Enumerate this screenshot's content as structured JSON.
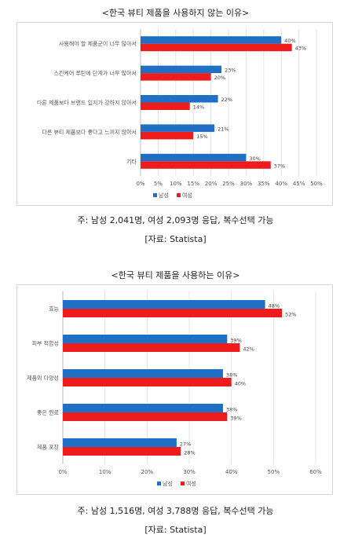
{
  "charts": [
    {
      "heading": "<한국 뷰티 제품을 사용하지 않는 이유>",
      "note": "주: 남성 2,041명, 여성 2,093명 응답, 복수선택 가능",
      "source": "[자료: Statista]"
    },
    {
      "heading": "<한국 뷰티 제품을 사용하는 이유>",
      "note": "주: 남성 1,516명, 여성 3,788명 응답, 복수선택 가능",
      "source": "[자료: Statista]"
    }
  ],
  "colors": {
    "male": "#1f6fc5",
    "female": "#ee1c1c"
  },
  "chart_data": [
    {
      "type": "bar",
      "orientation": "horizontal",
      "categories": [
        "사용해야 할 제품군이 너무 많아서",
        "스킨케어 루틴에 단계가 너무 많아서",
        "다른 제품보다 브랜드 입지가 강하지 않아서",
        "다른 뷰티 제품보다 좋다고 느끼지 않아서",
        "기타"
      ],
      "series": [
        {
          "name": "남성",
          "values": [
            40,
            23,
            22,
            21,
            30
          ],
          "labels": [
            "40%",
            "23%",
            "22%",
            "21%",
            "30%"
          ]
        },
        {
          "name": "여성",
          "values": [
            43,
            20,
            14,
            15,
            37
          ],
          "labels": [
            "43%",
            "20%",
            "14%",
            "15%",
            "37%"
          ]
        }
      ],
      "xlim": [
        0,
        50
      ],
      "xticks": [
        "0%",
        "5%",
        "10%",
        "15%",
        "20%",
        "25%",
        "30%",
        "35%",
        "40%",
        "45%",
        "50%"
      ],
      "grid": true,
      "legend": "bottom"
    },
    {
      "type": "bar",
      "orientation": "horizontal",
      "categories": [
        "효능",
        "피부 적합성",
        "제품의 다양성",
        "좋은 원료",
        "제품 포장"
      ],
      "series": [
        {
          "name": "남성",
          "values": [
            48,
            39,
            38,
            38,
            27
          ],
          "labels": [
            "48%",
            "39%",
            "38%",
            "38%",
            "27%"
          ]
        },
        {
          "name": "여성",
          "values": [
            52,
            42,
            40,
            39,
            28
          ],
          "labels": [
            "52%",
            "42%",
            "40%",
            "39%",
            "28%"
          ]
        }
      ],
      "xlim": [
        0,
        60
      ],
      "xticks": [
        "0%",
        "10%",
        "20%",
        "30%",
        "40%",
        "50%",
        "60%"
      ],
      "grid": true,
      "legend": "bottom"
    }
  ]
}
